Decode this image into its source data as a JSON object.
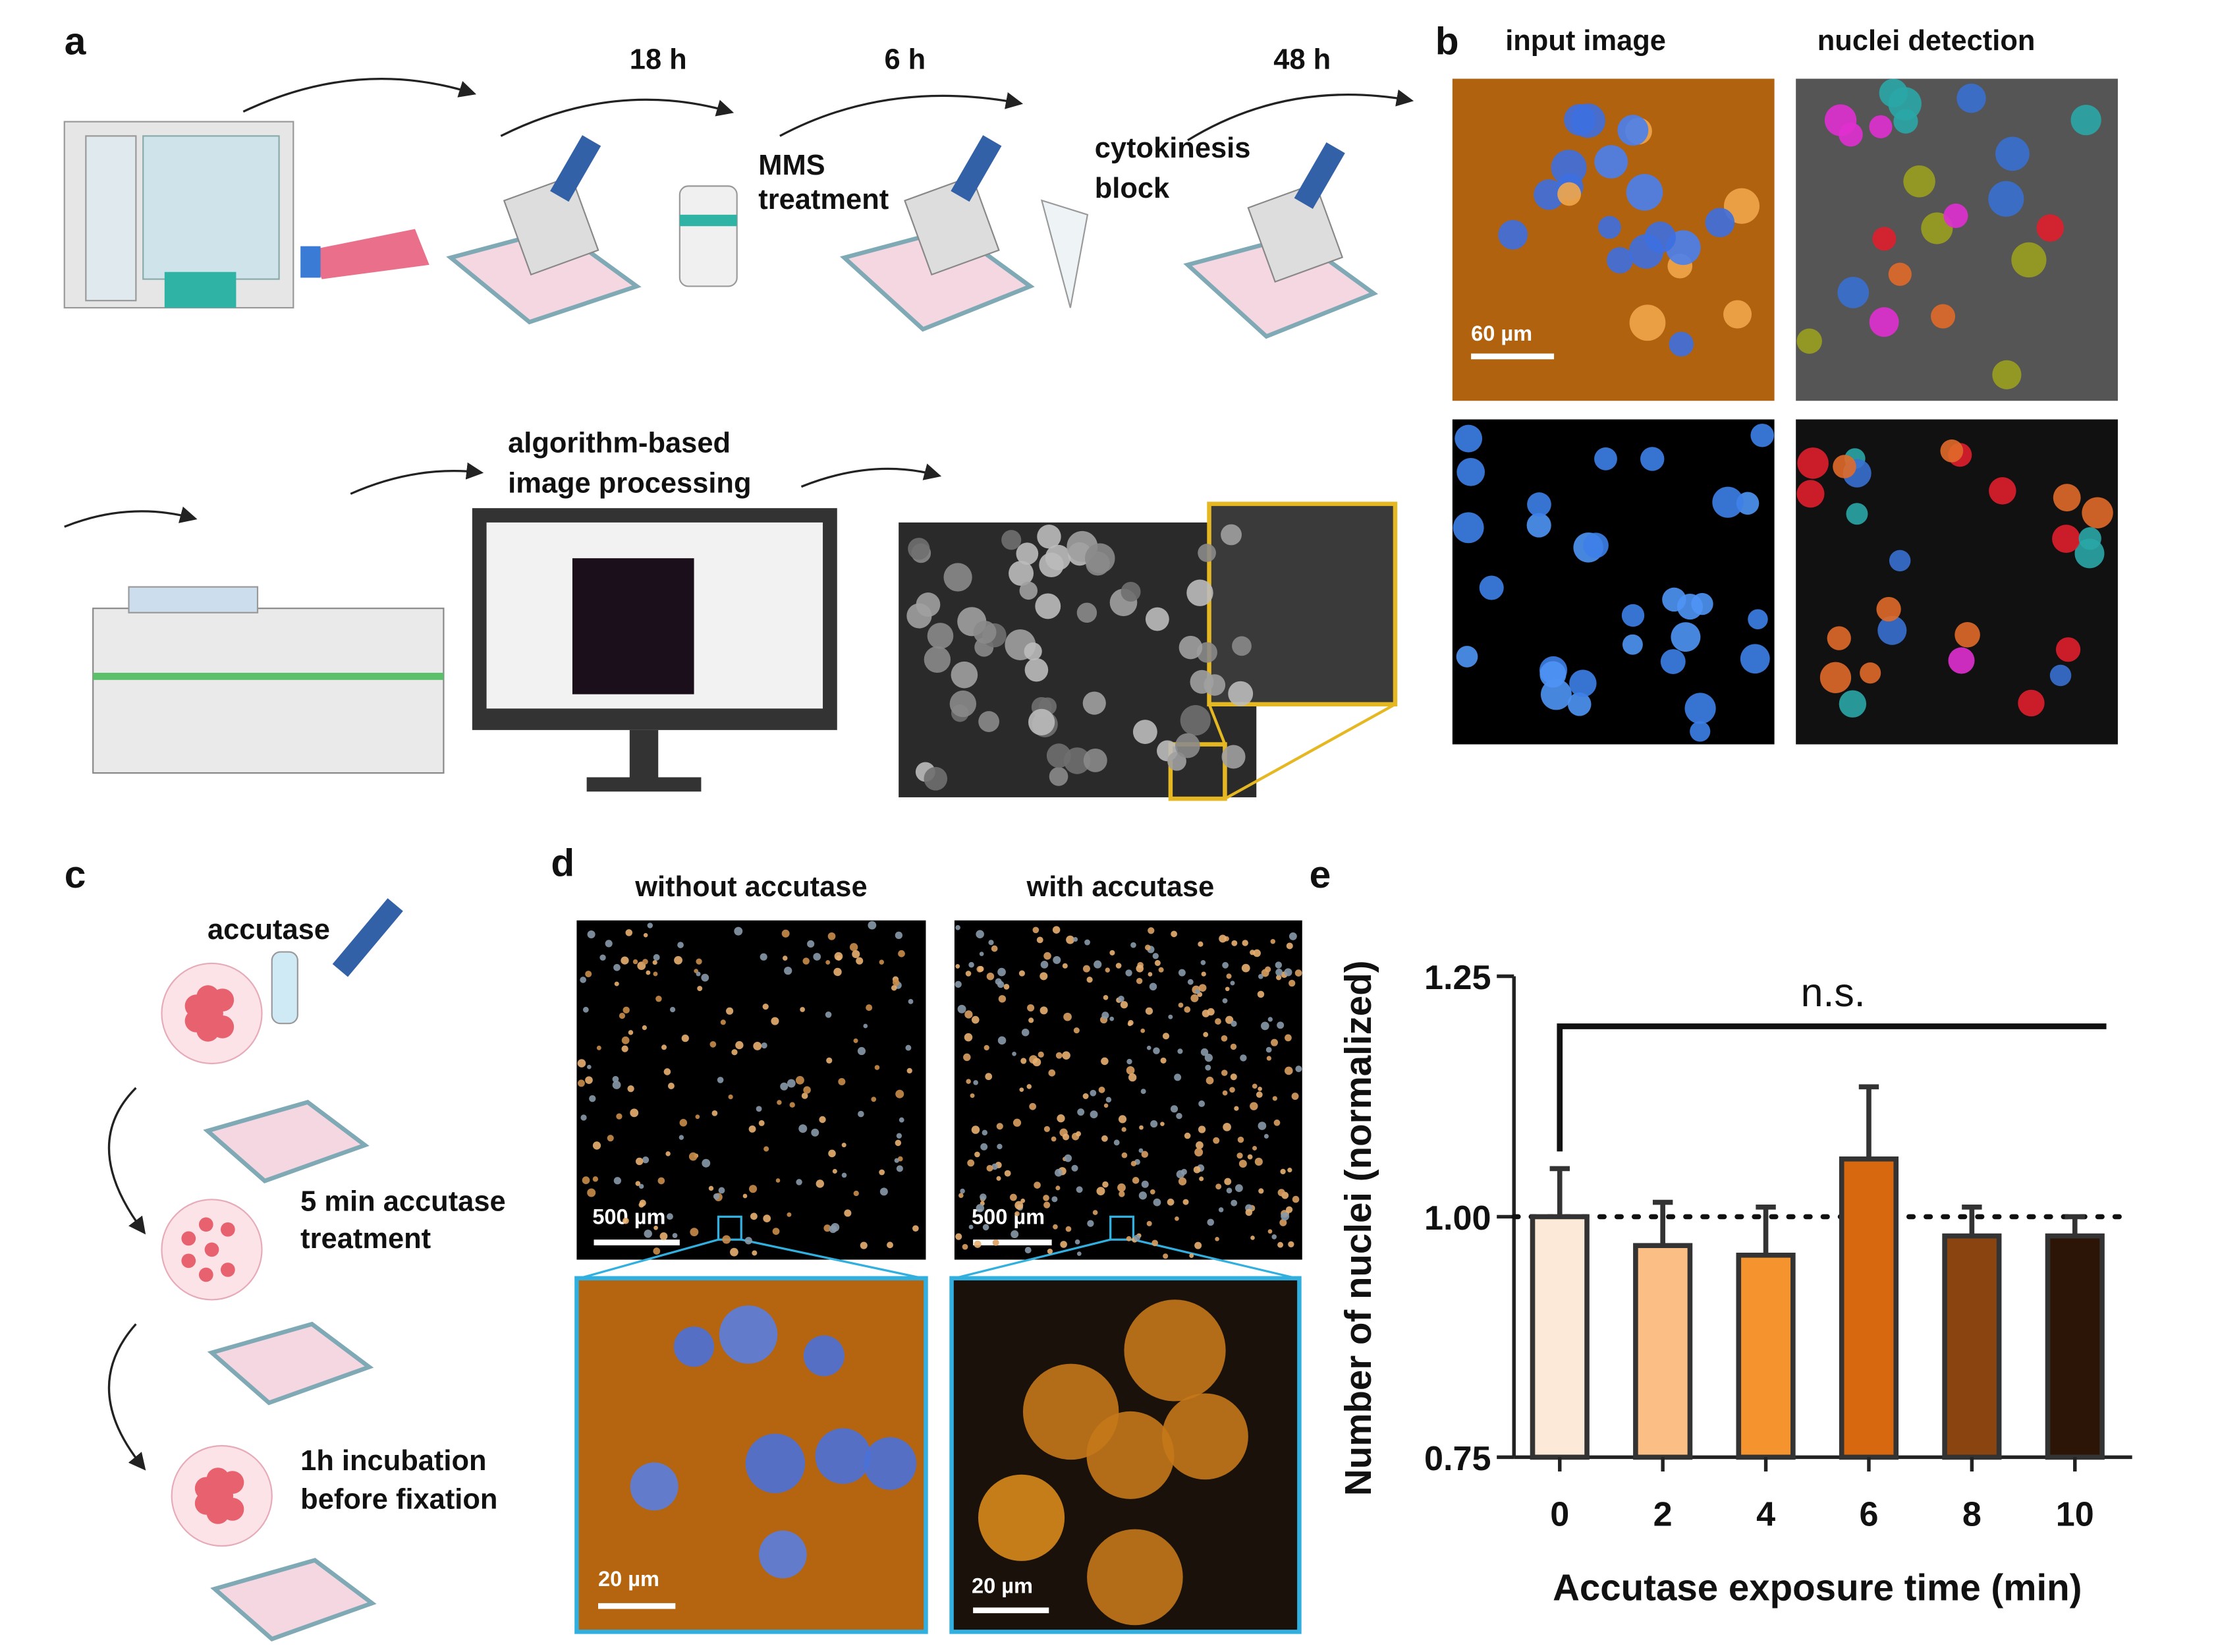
{
  "panels": {
    "a": {
      "label": "a",
      "times": [
        "18 h",
        "6 h",
        "48 h"
      ],
      "mms": [
        "MMS",
        "treatment"
      ],
      "cytokinesis": [
        "cytokinesis",
        "block"
      ],
      "processing": [
        "algorithm-based",
        "image processing"
      ]
    },
    "b": {
      "label": "b",
      "columns": [
        "input image",
        "nuclei detection"
      ],
      "scale": "60 µm"
    },
    "c": {
      "label": "c",
      "reagent": "accutase",
      "step1": [
        "5 min accutase",
        "treatment"
      ],
      "step2": [
        "1h incubation",
        "before fixation"
      ]
    },
    "d": {
      "label": "d",
      "columns": [
        "without accutase",
        "with accutase"
      ],
      "scale_overview": [
        "500 µm",
        "500 µm"
      ],
      "scale_zoom": [
        "20 µm",
        "20 µm"
      ]
    },
    "e": {
      "label": "e"
    }
  },
  "chart_data": {
    "type": "bar",
    "xlabel": "Accutase exposure time (min)",
    "ylabel": "Number of nuclei (normalized)",
    "categories": [
      "0",
      "2",
      "4",
      "6",
      "8",
      "10"
    ],
    "values": [
      1.0,
      0.97,
      0.96,
      1.06,
      0.98,
      0.98
    ],
    "errors": [
      0.05,
      0.045,
      0.05,
      0.075,
      0.03,
      0.02
    ],
    "colors": [
      "#fde9d7",
      "#fbbf85",
      "#f5942f",
      "#d8680f",
      "#8a4410",
      "#2c1507"
    ],
    "ylim": [
      0.75,
      1.25
    ],
    "yticks": [
      {
        "value": 0.75,
        "label": "0.75"
      },
      {
        "value": 1.0,
        "label": "1.00"
      },
      {
        "value": 1.25,
        "label": "1.25"
      }
    ],
    "reference_line": 1.0,
    "annotation": "n.s."
  }
}
